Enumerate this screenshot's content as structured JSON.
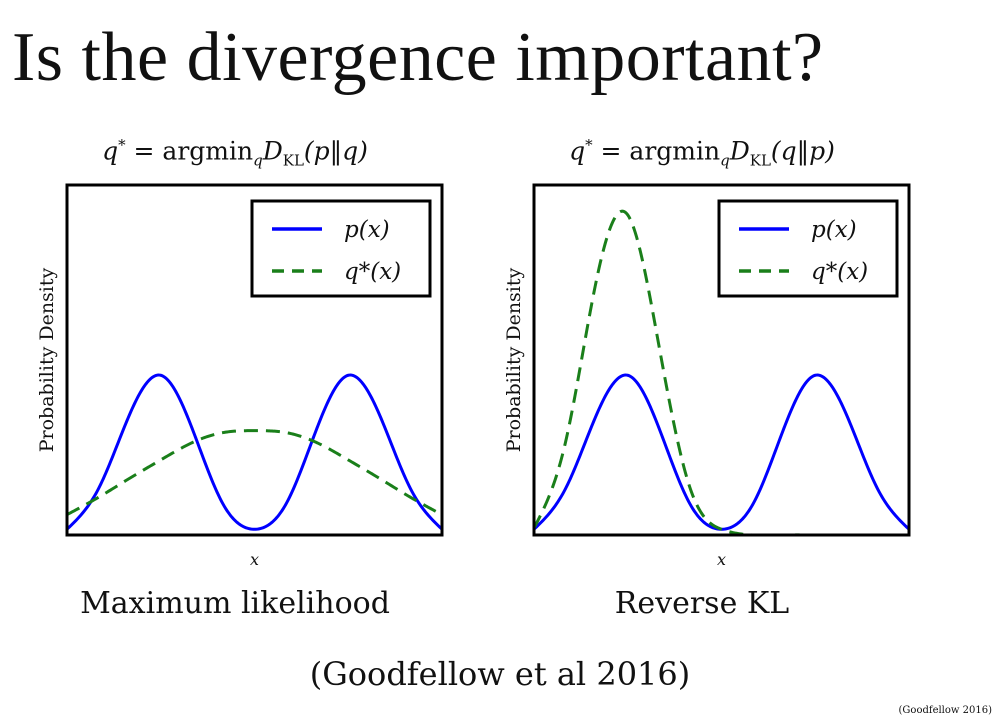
{
  "slide": {
    "title": "Is the divergence important?",
    "citation": "(Goodfellow et al 2016)",
    "footer_citation": "(Goodfellow 2016)"
  },
  "colors": {
    "p": "#0000ff",
    "q": "#1a7f1a",
    "frame": "#000000"
  },
  "chart_data": [
    {
      "type": "line",
      "title": "q* = argmin_q D_KL(p||q)",
      "title_parts": {
        "lhs": "q",
        "star": "*",
        "eq": " = argmin",
        "sub_q": "q",
        "D": "D",
        "KL": "KL",
        "arg": "(p‖q)"
      },
      "caption": "Maximum likelihood",
      "xlabel": "x",
      "ylabel": "Probability Density",
      "xlim": [
        -3,
        3
      ],
      "ylim": [
        0,
        0.55
      ],
      "grid": false,
      "legend_position": "top-right",
      "x": [
        -3.0,
        -2.5,
        -2.0,
        -1.5,
        -1.0,
        -0.5,
        0.0,
        0.5,
        1.0,
        1.5,
        2.0,
        2.5,
        3.0
      ],
      "series": [
        {
          "name": "p(x)",
          "style": "solid",
          "values": [
            0.009,
            0.072,
            0.189,
            0.251,
            0.168,
            0.048,
            0.009,
            0.048,
            0.168,
            0.251,
            0.189,
            0.072,
            0.009
          ]
        },
        {
          "name": "q*(x)",
          "style": "dashed",
          "values": [
            0.032,
            0.059,
            0.089,
            0.118,
            0.145,
            0.161,
            0.164,
            0.161,
            0.145,
            0.118,
            0.089,
            0.059,
            0.032
          ]
        }
      ]
    },
    {
      "type": "line",
      "title": "q* = argmin_q D_KL(q||p)",
      "title_parts": {
        "lhs": "q",
        "star": "*",
        "eq": " = argmin",
        "sub_q": "q",
        "D": "D",
        "KL": "KL",
        "arg": "(q‖p)"
      },
      "caption": "Reverse KL",
      "xlabel": "x",
      "ylabel": "Probability Density",
      "xlim": [
        -3,
        3
      ],
      "ylim": [
        0,
        0.55
      ],
      "grid": false,
      "legend_position": "top-right",
      "x": [
        -3.0,
        -2.5,
        -2.0,
        -1.5,
        -1.0,
        -0.5,
        0.0,
        0.5,
        1.0,
        1.5,
        2.0,
        2.5,
        3.0
      ],
      "series": [
        {
          "name": "p(x)",
          "style": "solid",
          "values": [
            0.009,
            0.072,
            0.189,
            0.251,
            0.168,
            0.048,
            0.009,
            0.048,
            0.168,
            0.251,
            0.189,
            0.072,
            0.009
          ]
        },
        {
          "name": "q*(x)",
          "style": "dashed",
          "values": [
            0.011,
            0.144,
            0.401,
            0.503,
            0.297,
            0.073,
            0.009,
            0.0,
            0.0,
            0.0,
            0.0,
            0.0,
            0.0
          ]
        }
      ]
    }
  ]
}
